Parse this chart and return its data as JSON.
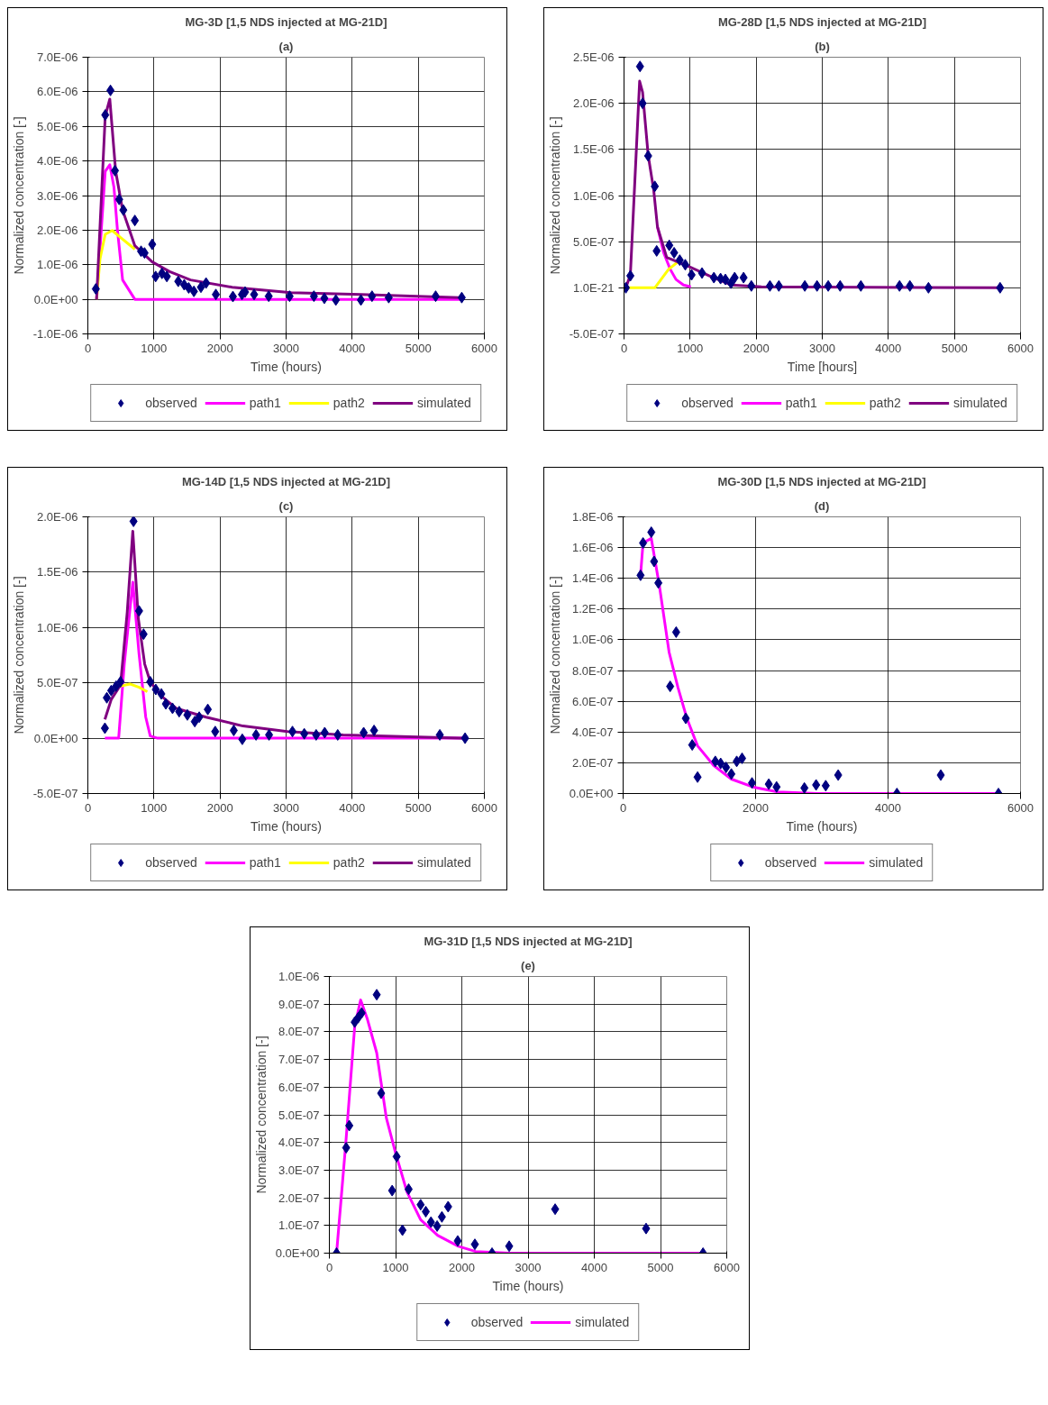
{
  "chart_data": [
    {
      "type": "line",
      "title": "MG-3D [1,5 NDS injected at MG-21D]",
      "subtitle": "(a)",
      "xlabel": "Time (hours)",
      "ylabel": "Normalized concentration [-]",
      "xlim": [
        0,
        6000
      ],
      "xticks": [
        0,
        1000,
        2000,
        3000,
        4000,
        5000,
        6000
      ],
      "ylim": [
        -1e-06,
        7e-06
      ],
      "yticks": [
        {
          "value": -1e-06,
          "label": "-1.0E-06"
        },
        {
          "value": 0,
          "label": "0.0E+00"
        },
        {
          "value": 1e-06,
          "label": "1.0E-06"
        },
        {
          "value": 2e-06,
          "label": "2.0E-06"
        },
        {
          "value": 3e-06,
          "label": "3.0E-06"
        },
        {
          "value": 4e-06,
          "label": "4.0E-06"
        },
        {
          "value": 5e-06,
          "label": "5.0E-06"
        },
        {
          "value": 6e-06,
          "label": "6.0E-06"
        },
        {
          "value": 7e-06,
          "label": "7.0E-06"
        }
      ],
      "grid": true,
      "legend": "bottom",
      "series": [
        {
          "name": "observed",
          "type": "scatter",
          "marker": "diamond",
          "color": "#000080",
          "x": [
            121,
            263,
            342,
            410,
            474,
            537,
            711,
            805,
            858,
            974,
            1026,
            1121,
            1195,
            1368,
            1458,
            1526,
            1605,
            1711,
            1789,
            1937,
            2195,
            2332,
            2379,
            2516,
            2737,
            3053,
            3421,
            3579,
            3753,
            4132,
            4300,
            4553,
            5263,
            5658
          ],
          "values": [
            3e-07,
            5.33e-06,
            6.04e-06,
            3.72e-06,
            2.89e-06,
            2.58e-06,
            2.28e-06,
            1.39e-06,
            1.34e-06,
            1.59e-06,
            6.6e-07,
            7.5e-07,
            6.6e-07,
            5.2e-07,
            4.2e-07,
            3.3e-07,
            2.3e-07,
            3.5e-07,
            4.7e-07,
            1.4e-07,
            8e-08,
            1.4e-07,
            2.1e-07,
            1.4e-07,
            9e-08,
            9e-08,
            9e-08,
            3e-08,
            -2e-08,
            -2e-08,
            9e-08,
            5e-08,
            9e-08,
            5e-08
          ]
        },
        {
          "name": "path1",
          "color": "#ff00ff",
          "x": [
            132,
            263,
            332,
            395,
            447,
            526,
            711,
            5658
          ],
          "values": [
            0,
            3.7e-06,
            3.89e-06,
            3.24e-06,
            2.02e-06,
            5.6e-07,
            0,
            0
          ]
        },
        {
          "name": "path2",
          "color": "#ffff00",
          "x": [
            132,
            184,
            263,
            368,
            500,
            711
          ],
          "values": [
            0,
            1.17e-06,
            1.88e-06,
            1.99e-06,
            1.78e-06,
            1.45e-06
          ]
        },
        {
          "name": "simulated",
          "color": "#800080",
          "x": [
            132,
            263,
            332,
            421,
            526,
            711,
            974,
            1237,
            1553,
            2184,
            3079,
            4132,
            5658
          ],
          "values": [
            0,
            5.3e-06,
            5.79e-06,
            3.7e-06,
            2.58e-06,
            1.55e-06,
            1.08e-06,
            8e-07,
            5.6e-07,
            3.5e-07,
            1.9e-07,
            1.4e-07,
            5e-08
          ]
        }
      ]
    },
    {
      "type": "line",
      "title": "MG-28D [1,5 NDS injected at MG-21D]",
      "subtitle": "(b)",
      "xlabel": "Time [hours]",
      "ylabel": "Normalized concentration [-]",
      "xlim": [
        0,
        6000
      ],
      "xticks": [
        0,
        1000,
        2000,
        3000,
        4000,
        5000,
        6000
      ],
      "ylim": [
        -5e-07,
        2.5e-06
      ],
      "yticks": [
        {
          "value": -5e-07,
          "label": "-5.0E-07"
        },
        {
          "value": 1e-21,
          "label": "1.0E-21"
        },
        {
          "value": 5e-07,
          "label": "5.0E-07"
        },
        {
          "value": 1e-06,
          "label": "1.0E-06"
        },
        {
          "value": 1.5e-06,
          "label": "1.5E-06"
        },
        {
          "value": 2e-06,
          "label": "2.0E-06"
        },
        {
          "value": 2.5e-06,
          "label": "2.5E-06"
        }
      ],
      "grid": true,
      "legend": "bottom",
      "series": [
        {
          "name": "observed",
          "type": "scatter",
          "marker": "diamond",
          "color": "#000080",
          "x": [
            28,
            96,
            242,
            281,
            365,
            466,
            494,
            685,
            758,
            843,
            927,
            1022,
            1180,
            1360,
            1461,
            1534,
            1618,
            1674,
            1809,
            1927,
            2208,
            2343,
            2736,
            2921,
            3090,
            3270,
            3584,
            4169,
            4326,
            4607,
            5691
          ],
          "values": [
            0,
            1.3e-07,
            2.4e-06,
            2e-06,
            1.43e-06,
            1.1e-06,
            4e-07,
            4.6e-07,
            3.8e-07,
            3e-07,
            2.5e-07,
            1.4e-07,
            1.6e-07,
            1.1e-07,
            1e-07,
            9e-08,
            5e-08,
            1.1e-07,
            1.1e-07,
            2e-08,
            2e-08,
            2e-08,
            2e-08,
            2e-08,
            2e-08,
            2e-08,
            2e-08,
            2e-08,
            2e-08,
            0,
            0
          ]
        },
        {
          "name": "path1",
          "color": "#ff00ff",
          "x": [
            506,
            600,
            700,
            787,
            900,
            1011
          ],
          "values": [
            6.6e-07,
            3.8e-07,
            2e-07,
            9e-08,
            3e-08,
            1e-08
          ]
        },
        {
          "name": "path2",
          "color": "#ffff00",
          "x": [
            28,
            466,
            674,
            815
          ],
          "values": [
            0,
            0,
            2e-07,
            2.8e-07
          ]
        },
        {
          "name": "simulated",
          "color": "#800080",
          "x": [
            28,
            96,
            236,
            281,
            365,
            449,
            506,
            646,
            955,
            1292,
            1629,
            2079,
            5691
          ],
          "values": [
            0,
            1.4e-07,
            2.24e-06,
            2.12e-06,
            1.44e-06,
            1.06e-06,
            6.6e-07,
            3.3e-07,
            2.4e-07,
            1.3e-07,
            3e-08,
            1e-08,
            0
          ]
        }
      ]
    },
    {
      "type": "line",
      "title": "MG-14D [1,5 NDS injected at MG-21D]",
      "subtitle": "(c)",
      "xlabel": "Time (hours)",
      "ylabel": "Normalized concentration [-]",
      "xlim": [
        0,
        6000
      ],
      "xticks": [
        0,
        1000,
        2000,
        3000,
        4000,
        5000,
        6000
      ],
      "ylim": [
        -5e-07,
        2e-06
      ],
      "yticks": [
        {
          "value": -5e-07,
          "label": "-5.0E-07"
        },
        {
          "value": 0,
          "label": "0.0E+00"
        },
        {
          "value": 5e-07,
          "label": "5.0E-07"
        },
        {
          "value": 1e-06,
          "label": "1.0E-06"
        },
        {
          "value": 1.5e-06,
          "label": "1.5E-06"
        },
        {
          "value": 2e-06,
          "label": "2.0E-06"
        }
      ],
      "grid": true,
      "legend": "bottom",
      "series": [
        {
          "name": "observed",
          "type": "scatter",
          "marker": "diamond",
          "color": "#000080",
          "x": [
            258,
            287,
            354,
            427,
            494,
            691,
            775,
            843,
            944,
            1028,
            1112,
            1180,
            1281,
            1382,
            1506,
            1618,
            1685,
            1815,
            1927,
            2208,
            2337,
            2545,
            2742,
            3096,
            3275,
            3455,
            3584,
            3781,
            4174,
            4331,
            5326,
            5708
          ],
          "values": [
            9e-08,
            3.65e-07,
            4.3e-07,
            4.7e-07,
            5.1e-07,
            1.96e-06,
            1.15e-06,
            9.4e-07,
            5.1e-07,
            4.4e-07,
            4e-07,
            3.1e-07,
            2.7e-07,
            2.4e-07,
            2.1e-07,
            1.5e-07,
            1.9e-07,
            2.6e-07,
            6e-08,
            7e-08,
            -1e-08,
            3e-08,
            3e-08,
            6e-08,
            4e-08,
            3e-08,
            5e-08,
            3e-08,
            5e-08,
            7e-08,
            3e-08,
            0
          ]
        },
        {
          "name": "path1",
          "color": "#ff00ff",
          "x": [
            258,
            466,
            551,
            680,
            775,
            876,
            944,
            1056,
            5708
          ],
          "values": [
            0,
            0,
            6.7e-07,
            1.41e-06,
            7.6e-07,
            1.9e-07,
            2e-08,
            0,
            0
          ]
        },
        {
          "name": "path2",
          "color": "#ffff00",
          "x": [
            494,
            635,
            775,
            900
          ],
          "values": [
            4.7e-07,
            4.9e-07,
            4.6e-07,
            4.2e-07
          ]
        },
        {
          "name": "simulated",
          "color": "#800080",
          "x": [
            258,
            354,
            494,
            596,
            680,
            764,
            860,
            944,
            1112,
            1337,
            1787,
            2348,
            3022,
            3865,
            5708
          ],
          "values": [
            1.7e-07,
            3.5e-07,
            4.8e-07,
            1.14e-06,
            1.87e-06,
            1.08e-06,
            6.7e-07,
            5.1e-07,
            3.8e-07,
            2.7e-07,
            1.9e-07,
            1.1e-07,
            6e-08,
            3e-08,
            0
          ]
        }
      ]
    },
    {
      "type": "line",
      "title": "MG-30D [1,5 NDS injected at MG-21D]",
      "subtitle": "(d)",
      "xlabel": "Time (hours)",
      "ylabel": "Normalized concentration [-]",
      "xlim": [
        0,
        6000
      ],
      "xticks": [
        0,
        2000,
        4000,
        6000
      ],
      "ylim": [
        0,
        1.8e-06
      ],
      "yticks": [
        {
          "value": 0,
          "label": "0.0E+00"
        },
        {
          "value": 2e-07,
          "label": "2.0E-07"
        },
        {
          "value": 4e-07,
          "label": "4.0E-07"
        },
        {
          "value": 6e-07,
          "label": "6.0E-07"
        },
        {
          "value": 8e-07,
          "label": "8.0E-07"
        },
        {
          "value": 1e-06,
          "label": "1.0E-06"
        },
        {
          "value": 1.2e-06,
          "label": "1.2E-06"
        },
        {
          "value": 1.4e-06,
          "label": "1.4E-06"
        },
        {
          "value": 1.6e-06,
          "label": "1.6E-06"
        },
        {
          "value": 1.8e-06,
          "label": "1.8E-06"
        }
      ],
      "grid": true,
      "legend": "bottom",
      "series": [
        {
          "name": "observed",
          "type": "scatter",
          "marker": "diamond",
          "color": "#000080",
          "x": [
            263,
            301,
            425,
            468,
            532,
            710,
            801,
            946,
            1043,
            1124,
            1392,
            1473,
            1554,
            1634,
            1715,
            1796,
            1946,
            2199,
            2317,
            2737,
            2914,
            3059,
            3247,
            4134,
            4796,
            5667
          ],
          "values": [
            1.42e-06,
            1.63e-06,
            1.7e-06,
            1.51e-06,
            1.37e-06,
            6.97e-07,
            1.05e-06,
            4.89e-07,
            3.16e-07,
            1.07e-07,
            2.09e-07,
            1.96e-07,
            1.7e-07,
            1.27e-07,
            2.09e-07,
            2.29e-07,
            6.9e-08,
            6.1e-08,
            4.3e-08,
            3.6e-08,
            5.6e-08,
            5.1e-08,
            1.2e-07,
            0,
            1.2e-07,
            0
          ]
        },
        {
          "name": "simulated",
          "color": "#ff00ff",
          "x": [
            263,
            301,
            425,
            548,
            694,
            828,
            962,
            1124,
            1366,
            1634,
            1957,
            2333,
            2925,
            5667
          ],
          "values": [
            1.42e-06,
            1.63e-06,
            1.66e-06,
            1.35e-06,
            9.2e-07,
            6.9e-07,
            4.9e-07,
            3.1e-07,
            1.83e-07,
            9.4e-08,
            4.3e-08,
            1e-08,
            0,
            0
          ]
        }
      ]
    },
    {
      "type": "line",
      "title": "MG-31D [1,5 NDS injected at MG-21D]",
      "subtitle": "(e)",
      "xlabel": "Time (hours)",
      "ylabel": "Normalized concentration [-]",
      "xlim": [
        0,
        6000
      ],
      "xticks": [
        0,
        1000,
        2000,
        3000,
        4000,
        5000,
        6000
      ],
      "ylim": [
        0,
        1e-06
      ],
      "yticks": [
        {
          "value": 0,
          "label": "0.0E+00"
        },
        {
          "value": 1e-07,
          "label": "1.0E-07"
        },
        {
          "value": 2e-07,
          "label": "2.0E-07"
        },
        {
          "value": 3e-07,
          "label": "3.0E-07"
        },
        {
          "value": 4e-07,
          "label": "4.0E-07"
        },
        {
          "value": 5e-07,
          "label": "5.0E-07"
        },
        {
          "value": 6e-07,
          "label": "6.0E-07"
        },
        {
          "value": 7e-07,
          "label": "7.0E-07"
        },
        {
          "value": 8e-07,
          "label": "8.0E-07"
        },
        {
          "value": 9e-07,
          "label": "9.0E-07"
        },
        {
          "value": 1e-06,
          "label": "1.0E-06"
        }
      ],
      "grid": true,
      "legend": "bottom",
      "series": [
        {
          "name": "observed",
          "type": "scatter",
          "marker": "diamond",
          "color": "#000080",
          "x": [
            109,
            254,
            301,
            383,
            435,
            487,
            715,
            782,
            948,
            1016,
            1104,
            1197,
            1378,
            1456,
            1534,
            1627,
            1699,
            1793,
            1938,
            2197,
            2456,
            2715,
            3409,
            4782,
            5642
          ],
          "values": [
            0,
            3.81e-07,
            4.61e-07,
            8.35e-07,
            8.51e-07,
            8.68e-07,
            9.34e-07,
            5.78e-07,
            2.26e-07,
            3.49e-07,
            8.3e-08,
            2.31e-07,
            1.75e-07,
            1.5e-07,
            1.12e-07,
            9.8e-08,
            1.31e-07,
            1.68e-07,
            4.4e-08,
            3.2e-08,
            0,
            2.5e-08,
            1.59e-07,
            8.9e-08,
            0
          ]
        },
        {
          "name": "simulated",
          "color": "#ff00ff",
          "x": [
            109,
            249,
            383,
            472,
            575,
            715,
            860,
            1000,
            1171,
            1378,
            1637,
            1948,
            2207,
            2725,
            5642
          ],
          "values": [
            0,
            4e-07,
            8.2e-07,
            9.15e-07,
            8.45e-07,
            7.24e-07,
            4.89e-07,
            3.62e-07,
            2.22e-07,
            1.21e-07,
            6.4e-08,
            2.5e-08,
            6e-09,
            0,
            0
          ]
        }
      ]
    }
  ]
}
